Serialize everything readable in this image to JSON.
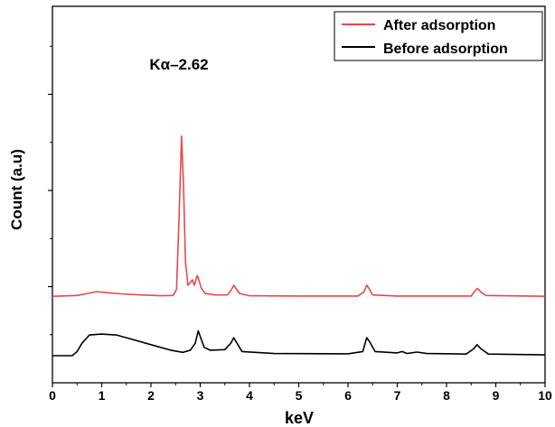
{
  "chart_data": {
    "type": "line",
    "xlabel": "keV",
    "ylabel": "Count (a.u)",
    "xlim": [
      0,
      10
    ],
    "ylim": [
      0,
      100
    ],
    "x_ticks": [
      0,
      1,
      2,
      3,
      4,
      5,
      6,
      7,
      8,
      9,
      10
    ],
    "grid": false,
    "legend_position": "top-right",
    "annotation": {
      "text": "Kα–2.62",
      "x": 2.62
    },
    "series": [
      {
        "name": "After adsorption",
        "color": "#e8474c",
        "points": [
          [
            0,
            21.5
          ],
          [
            0.5,
            21.8
          ],
          [
            0.7,
            22.5
          ],
          [
            0.9,
            23.2
          ],
          [
            1.1,
            22.8
          ],
          [
            1.4,
            22.4
          ],
          [
            1.8,
            22.0
          ],
          [
            2.2,
            21.7
          ],
          [
            2.45,
            21.8
          ],
          [
            2.52,
            24
          ],
          [
            2.57,
            50
          ],
          [
            2.62,
            79.5
          ],
          [
            2.66,
            62
          ],
          [
            2.7,
            34
          ],
          [
            2.75,
            25.5
          ],
          [
            2.8,
            26.5
          ],
          [
            2.84,
            27.5
          ],
          [
            2.88,
            25.5
          ],
          [
            2.94,
            29
          ],
          [
            2.98,
            27
          ],
          [
            3.02,
            24.5
          ],
          [
            3.1,
            22.5
          ],
          [
            3.3,
            22
          ],
          [
            3.55,
            22
          ],
          [
            3.62,
            23.5
          ],
          [
            3.68,
            25.5
          ],
          [
            3.72,
            24.5
          ],
          [
            3.8,
            22.5
          ],
          [
            4.0,
            21.7
          ],
          [
            5.0,
            21.6
          ],
          [
            6.2,
            21.6
          ],
          [
            6.32,
            23.0
          ],
          [
            6.38,
            25.5
          ],
          [
            6.42,
            24.5
          ],
          [
            6.5,
            22.0
          ],
          [
            7.0,
            21.6
          ],
          [
            8.5,
            21.6
          ],
          [
            8.58,
            23.5
          ],
          [
            8.63,
            24.3
          ],
          [
            8.7,
            23.0
          ],
          [
            8.8,
            21.8
          ],
          [
            10,
            21.5
          ]
        ]
      },
      {
        "name": "Before adsorption",
        "color": "#000000",
        "points": [
          [
            0,
            0
          ],
          [
            0.4,
            0
          ],
          [
            0.5,
            1.5
          ],
          [
            0.6,
            4.5
          ],
          [
            0.75,
            7.5
          ],
          [
            1.0,
            7.8
          ],
          [
            1.3,
            7.5
          ],
          [
            1.6,
            6.0
          ],
          [
            2.0,
            4.0
          ],
          [
            2.4,
            2.0
          ],
          [
            2.65,
            1.2
          ],
          [
            2.8,
            2.0
          ],
          [
            2.9,
            4.5
          ],
          [
            2.96,
            9.0
          ],
          [
            3.02,
            6.0
          ],
          [
            3.08,
            3.0
          ],
          [
            3.2,
            2.0
          ],
          [
            3.5,
            2.2
          ],
          [
            3.62,
            4.5
          ],
          [
            3.68,
            6.5
          ],
          [
            3.73,
            5.0
          ],
          [
            3.85,
            1.5
          ],
          [
            4.5,
            0.8
          ],
          [
            6.0,
            0.7
          ],
          [
            6.3,
            1.5
          ],
          [
            6.38,
            6.5
          ],
          [
            6.44,
            5.0
          ],
          [
            6.55,
            1.5
          ],
          [
            7.0,
            1.0
          ],
          [
            7.1,
            1.5
          ],
          [
            7.2,
            0.8
          ],
          [
            7.4,
            1.3
          ],
          [
            7.6,
            0.8
          ],
          [
            8.4,
            0.6
          ],
          [
            8.55,
            2.5
          ],
          [
            8.62,
            4.0
          ],
          [
            8.7,
            2.5
          ],
          [
            8.85,
            0.6
          ],
          [
            10,
            0.3
          ]
        ]
      }
    ]
  }
}
